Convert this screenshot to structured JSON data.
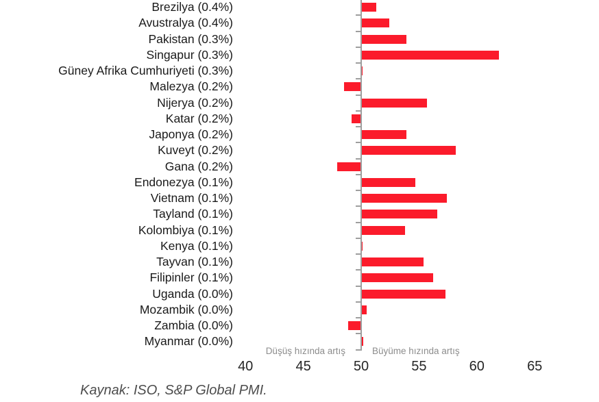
{
  "chart_data": {
    "type": "bar",
    "orientation": "horizontal",
    "baseline": 50,
    "xlim": [
      40,
      65
    ],
    "x_ticks": [
      40,
      45,
      50,
      55,
      60,
      65
    ],
    "grid": false,
    "legend": false,
    "categories": [
      "Brezilya (0.4%)",
      "Avustralya (0.4%)",
      "Pakistan (0.3%)",
      "Singapur (0.3%)",
      "Güney Afrika Cumhuriyeti (0.3%)",
      "Malezya (0.2%)",
      "Nijerya (0.2%)",
      "Katar (0.2%)",
      "Japonya (0.2%)",
      "Kuveyt (0.2%)",
      "Gana (0.2%)",
      "Endonezya (0.1%)",
      "Vietnam (0.1%)",
      "Tayland (0.1%)",
      "Kolombiya (0.1%)",
      "Kenya (0.1%)",
      "Tayvan (0.1%)",
      "Filipinler (0.1%)",
      "Uganda (0.0%)",
      "Mozambik (0.0%)",
      "Zambia (0.0%)",
      "Myanmar (0.0%)"
    ],
    "values": [
      51.3,
      52.4,
      53.9,
      61.9,
      50.1,
      48.5,
      55.7,
      49.2,
      53.9,
      58.2,
      47.9,
      54.7,
      57.4,
      56.6,
      53.8,
      50.1,
      55.4,
      56.2,
      57.3,
      50.5,
      48.9,
      50.2
    ],
    "colors": {
      "bar": "#FB1B2B",
      "axis": "#9E9E9E",
      "label_text": "#1A1A1A",
      "annotation_text": "#8C8C8C"
    },
    "annotations": {
      "left": "Düşüş hızında artış",
      "right": "Büyüme hızında artış"
    }
  },
  "source_note": "Kaynak: ISO, S&P Global PMI."
}
